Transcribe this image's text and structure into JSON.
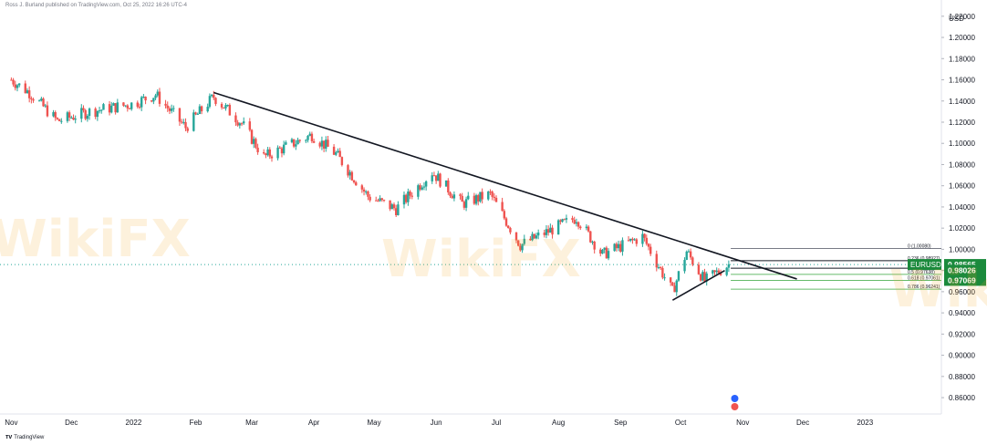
{
  "header": {
    "publisher_line": "Ross J. Burland published on TradingView.com, Oct 25, 2022 16:26 UTC-4"
  },
  "footer": {
    "brand": "TradingView"
  },
  "watermark": {
    "text": "WikiFX"
  },
  "colors": {
    "up": "#26a69a",
    "down": "#ef5350",
    "trendline": "#131722",
    "fib_band": "#66bb6a",
    "tag_green": "#1b8a3c",
    "price_line": "#26a69a"
  },
  "chart_data": {
    "type": "candlestick",
    "symbol": "EURUSD",
    "currency_label": "USD",
    "ylim": [
      0.848,
      1.225
    ],
    "y_ticks": [
      "0.86000",
      "0.88000",
      "0.90000",
      "0.92000",
      "0.94000",
      "0.96000",
      "0.98000",
      "1.00000",
      "1.02000",
      "1.04000",
      "1.06000",
      "1.08000",
      "1.10000",
      "1.12000",
      "1.14000",
      "1.16000",
      "1.18000",
      "1.20000",
      "1.22000"
    ],
    "x_ticks": [
      "Nov",
      "Dec",
      "2022",
      "Feb",
      "Mar",
      "Apr",
      "May",
      "Jun",
      "Jul",
      "Aug",
      "Sep",
      "Oct",
      "Nov",
      "Dec",
      "2023"
    ],
    "price_tags": [
      {
        "label": "EURUSD",
        "value": "0.98565"
      },
      {
        "value": "0.98026"
      },
      {
        "value": "0.97069"
      }
    ],
    "fib_labels": [
      "0 (1.00080)",
      "0.236 (0.98927)",
      "0.382 (0.98214)",
      "0.5 (0.97638)",
      "0.618 (0.97061)",
      "0.786 (0.96241)"
    ],
    "series_anchor_closes": [
      [
        "2021-11-01",
        1.16
      ],
      [
        "2021-11-10",
        1.148
      ],
      [
        "2021-11-24",
        1.121
      ],
      [
        "2021-12-10",
        1.13
      ],
      [
        "2021-12-31",
        1.137
      ],
      [
        "2022-01-12",
        1.146
      ],
      [
        "2022-01-27",
        1.115
      ],
      [
        "2022-02-10",
        1.144
      ],
      [
        "2022-02-24",
        1.119
      ],
      [
        "2022-03-07",
        1.087
      ],
      [
        "2022-03-31",
        1.108
      ],
      [
        "2022-04-12",
        1.09
      ],
      [
        "2022-04-28",
        1.05
      ],
      [
        "2022-05-12",
        1.038
      ],
      [
        "2022-05-30",
        1.073
      ],
      [
        "2022-06-14",
        1.043
      ],
      [
        "2022-06-28",
        1.052
      ],
      [
        "2022-07-13",
        1.004
      ],
      [
        "2022-08-10",
        1.03
      ],
      [
        "2022-08-23",
        0.995
      ],
      [
        "2022-09-12",
        1.012
      ],
      [
        "2022-09-27",
        0.96
      ],
      [
        "2022-10-04",
        0.998
      ],
      [
        "2022-10-13",
        0.97
      ],
      [
        "2022-10-25",
        0.9857
      ]
    ],
    "trendlines": [
      {
        "from": [
          "2022-02-10",
          1.148
        ],
        "to": [
          "2022-11-28",
          0.972
        ]
      },
      {
        "from": [
          "2022-09-27",
          0.952
        ],
        "to": [
          "2022-10-23",
          0.98
        ]
      }
    ]
  }
}
